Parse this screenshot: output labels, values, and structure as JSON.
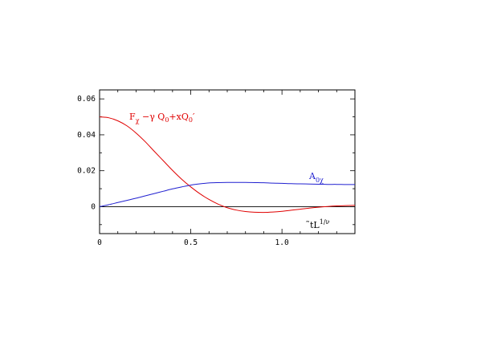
{
  "chart_data": {
    "type": "line",
    "title": "",
    "xlim": [
      0,
      1.4
    ],
    "ylim": [
      -0.015,
      0.065
    ],
    "grid": false,
    "x_ticks": [
      {
        "value": 0,
        "label": "0"
      },
      {
        "value": 0.5,
        "label": "0.5"
      },
      {
        "value": 1.0,
        "label": "1.0"
      }
    ],
    "y_ticks": [
      {
        "value": 0,
        "label": "0"
      },
      {
        "value": 0.02,
        "label": "0.02"
      },
      {
        "value": 0.04,
        "label": "0.04"
      },
      {
        "value": 0.06,
        "label": "0.06"
      }
    ],
    "x_axis_label": {
      "main": "̃tL",
      "sup": "1/ν"
    },
    "series": [
      {
        "label_main": "F",
        "label_sub": "χ",
        "label_rest": " −γ Q",
        "label_sub2": "0",
        "label_rest2": "+xQ",
        "label_sub3": "0",
        "label_tail": "′",
        "color": "#e00000",
        "x": [
          0,
          0.05,
          0.1,
          0.15,
          0.2,
          0.25,
          0.3,
          0.35,
          0.4,
          0.45,
          0.5,
          0.55,
          0.6,
          0.65,
          0.7,
          0.75,
          0.8,
          0.85,
          0.9,
          0.95,
          1.0,
          1.05,
          1.1,
          1.15,
          1.2,
          1.25,
          1.3,
          1.35,
          1.4
        ],
        "y": [
          0.05,
          0.0495,
          0.0478,
          0.045,
          0.041,
          0.0362,
          0.0308,
          0.0255,
          0.0202,
          0.0153,
          0.011,
          0.0072,
          0.004,
          0.0014,
          -0.0006,
          -0.0019,
          -0.0027,
          -0.0031,
          -0.0032,
          -0.003,
          -0.0026,
          -0.002,
          -0.0014,
          -0.0008,
          -0.0003,
          0.0001,
          0.0004,
          0.0006,
          0.0007
        ]
      },
      {
        "label_main": "A",
        "label_sub": "0χ",
        "color": "#2020d0",
        "x": [
          0,
          0.05,
          0.1,
          0.15,
          0.2,
          0.25,
          0.3,
          0.35,
          0.4,
          0.45,
          0.5,
          0.55,
          0.6,
          0.65,
          0.7,
          0.75,
          0.8,
          0.85,
          0.9,
          0.95,
          1.0,
          1.05,
          1.1,
          1.15,
          1.2,
          1.25,
          1.3,
          1.35,
          1.4
        ],
        "y": [
          0.0,
          0.0011,
          0.0023,
          0.0035,
          0.0047,
          0.006,
          0.0073,
          0.0086,
          0.0099,
          0.011,
          0.012,
          0.0127,
          0.0132,
          0.0134,
          0.0135,
          0.0135,
          0.0135,
          0.0134,
          0.0133,
          0.0131,
          0.013,
          0.0128,
          0.0127,
          0.0126,
          0.0125,
          0.0124,
          0.0124,
          0.0123,
          0.0123
        ]
      }
    ],
    "zero_line": true
  }
}
